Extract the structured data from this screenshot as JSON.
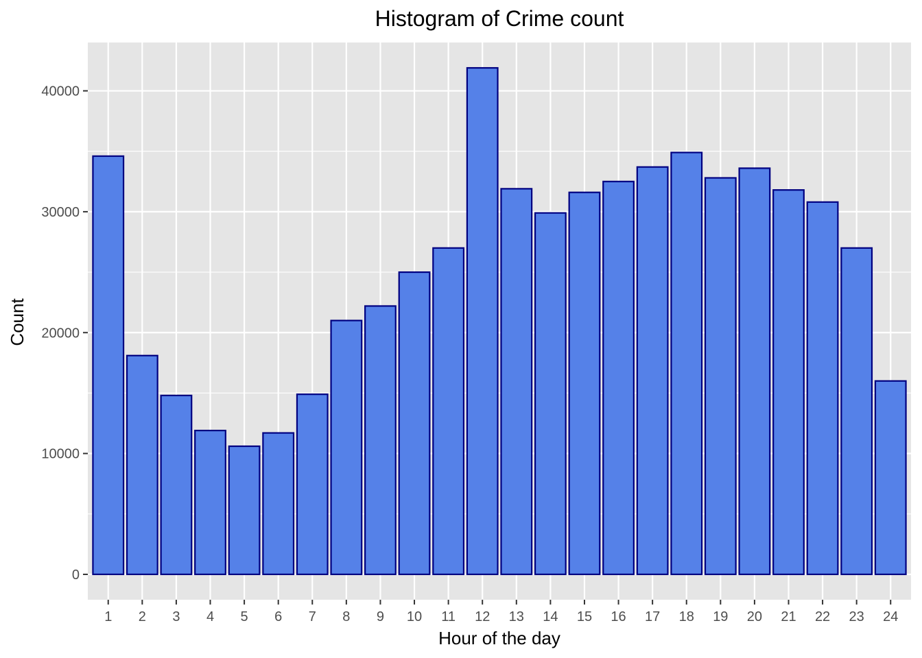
{
  "chart_data": {
    "type": "bar",
    "title": "Histogram of Crime count",
    "xlabel": "Hour of the day",
    "ylabel": "Count",
    "categories": [
      "1",
      "2",
      "3",
      "4",
      "5",
      "6",
      "7",
      "8",
      "9",
      "10",
      "11",
      "12",
      "13",
      "14",
      "15",
      "16",
      "17",
      "18",
      "19",
      "20",
      "21",
      "22",
      "23",
      "24"
    ],
    "values": [
      34600,
      18100,
      14800,
      11900,
      10600,
      11700,
      14900,
      21000,
      22200,
      25000,
      27000,
      41900,
      31900,
      29900,
      31600,
      32500,
      33700,
      34900,
      32800,
      33600,
      31800,
      30800,
      27000,
      16000
    ],
    "yticks": [
      0,
      10000,
      20000,
      30000,
      40000
    ],
    "ytick_labels": [
      "0",
      "10000",
      "20000",
      "30000",
      "40000"
    ],
    "ylim": [
      -2100,
      44000
    ],
    "grid": true,
    "panel_background": "#e5e5e5",
    "grid_color": "#ffffff",
    "bar_fill": "#5581e8",
    "bar_outline": "#000080"
  }
}
